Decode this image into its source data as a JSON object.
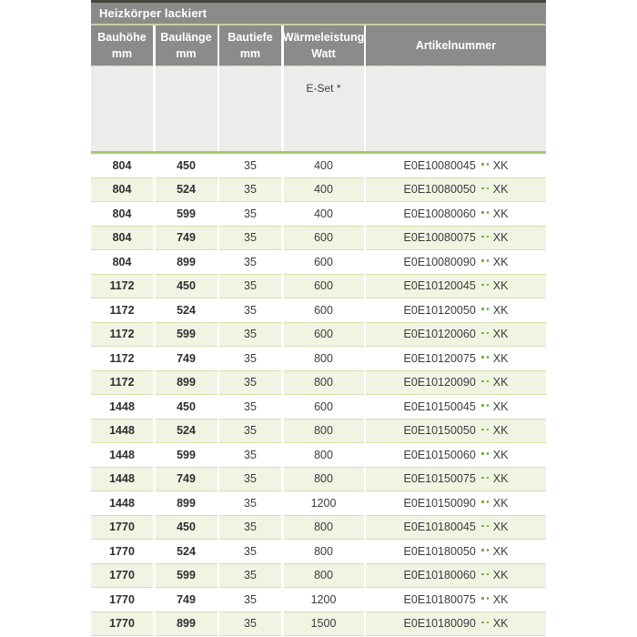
{
  "table": {
    "title": "Heizkörper lackiert",
    "columns": [
      {
        "label": "Bauhöhe",
        "unit": "mm"
      },
      {
        "label": "Baulänge",
        "unit": "mm"
      },
      {
        "label": "Bautiefe",
        "unit": "mm"
      },
      {
        "label": "Wärmeleistung",
        "unit": "Watt"
      },
      {
        "label": "Artikelnummer",
        "unit": ""
      }
    ],
    "subheader": {
      "eset_label": "E-Set *"
    },
    "rows": [
      {
        "bauhoehe": "804",
        "baulaenge": "450",
        "bautiefe": "35",
        "watt": "400",
        "artikel_code": "E0E10080045",
        "artikel_suffix": "XK"
      },
      {
        "bauhoehe": "804",
        "baulaenge": "524",
        "bautiefe": "35",
        "watt": "400",
        "artikel_code": "E0E10080050",
        "artikel_suffix": "XK"
      },
      {
        "bauhoehe": "804",
        "baulaenge": "599",
        "bautiefe": "35",
        "watt": "400",
        "artikel_code": "E0E10080060",
        "artikel_suffix": "XK"
      },
      {
        "bauhoehe": "804",
        "baulaenge": "749",
        "bautiefe": "35",
        "watt": "600",
        "artikel_code": "E0E10080075",
        "artikel_suffix": "XK"
      },
      {
        "bauhoehe": "804",
        "baulaenge": "899",
        "bautiefe": "35",
        "watt": "600",
        "artikel_code": "E0E10080090",
        "artikel_suffix": "XK"
      },
      {
        "bauhoehe": "1172",
        "baulaenge": "450",
        "bautiefe": "35",
        "watt": "600",
        "artikel_code": "E0E10120045",
        "artikel_suffix": "XK"
      },
      {
        "bauhoehe": "1172",
        "baulaenge": "524",
        "bautiefe": "35",
        "watt": "600",
        "artikel_code": "E0E10120050",
        "artikel_suffix": "XK"
      },
      {
        "bauhoehe": "1172",
        "baulaenge": "599",
        "bautiefe": "35",
        "watt": "600",
        "artikel_code": "E0E10120060",
        "artikel_suffix": "XK"
      },
      {
        "bauhoehe": "1172",
        "baulaenge": "749",
        "bautiefe": "35",
        "watt": "800",
        "artikel_code": "E0E10120075",
        "artikel_suffix": "XK"
      },
      {
        "bauhoehe": "1172",
        "baulaenge": "899",
        "bautiefe": "35",
        "watt": "800",
        "artikel_code": "E0E10120090",
        "artikel_suffix": "XK"
      },
      {
        "bauhoehe": "1448",
        "baulaenge": "450",
        "bautiefe": "35",
        "watt": "600",
        "artikel_code": "E0E10150045",
        "artikel_suffix": "XK"
      },
      {
        "bauhoehe": "1448",
        "baulaenge": "524",
        "bautiefe": "35",
        "watt": "800",
        "artikel_code": "E0E10150050",
        "artikel_suffix": "XK"
      },
      {
        "bauhoehe": "1448",
        "baulaenge": "599",
        "bautiefe": "35",
        "watt": "800",
        "artikel_code": "E0E10150060",
        "artikel_suffix": "XK"
      },
      {
        "bauhoehe": "1448",
        "baulaenge": "749",
        "bautiefe": "35",
        "watt": "800",
        "artikel_code": "E0E10150075",
        "artikel_suffix": "XK"
      },
      {
        "bauhoehe": "1448",
        "baulaenge": "899",
        "bautiefe": "35",
        "watt": "1200",
        "artikel_code": "E0E10150090",
        "artikel_suffix": "XK"
      },
      {
        "bauhoehe": "1770",
        "baulaenge": "450",
        "bautiefe": "35",
        "watt": "800",
        "artikel_code": "E0E10180045",
        "artikel_suffix": "XK"
      },
      {
        "bauhoehe": "1770",
        "baulaenge": "524",
        "bautiefe": "35",
        "watt": "800",
        "artikel_code": "E0E10180050",
        "artikel_suffix": "XK"
      },
      {
        "bauhoehe": "1770",
        "baulaenge": "599",
        "bautiefe": "35",
        "watt": "800",
        "artikel_code": "E0E10180060",
        "artikel_suffix": "XK"
      },
      {
        "bauhoehe": "1770",
        "baulaenge": "749",
        "bautiefe": "35",
        "watt": "1200",
        "artikel_code": "E0E10180075",
        "artikel_suffix": "XK"
      },
      {
        "bauhoehe": "1770",
        "baulaenge": "899",
        "bautiefe": "35",
        "watt": "1500",
        "artikel_code": "E0E10180090",
        "artikel_suffix": "XK"
      }
    ],
    "colors": {
      "header_gray": "#8b8b89",
      "subheader_gray": "#ececea",
      "row_alt_green": "#f0f4e3",
      "row_separator_green": "#d3e0ad",
      "accent_band_green": "#a6ca66",
      "dot_green": "#7ab33c",
      "title_divider_green": "#c6d29b",
      "top_accent_dark": "#45453e"
    }
  }
}
